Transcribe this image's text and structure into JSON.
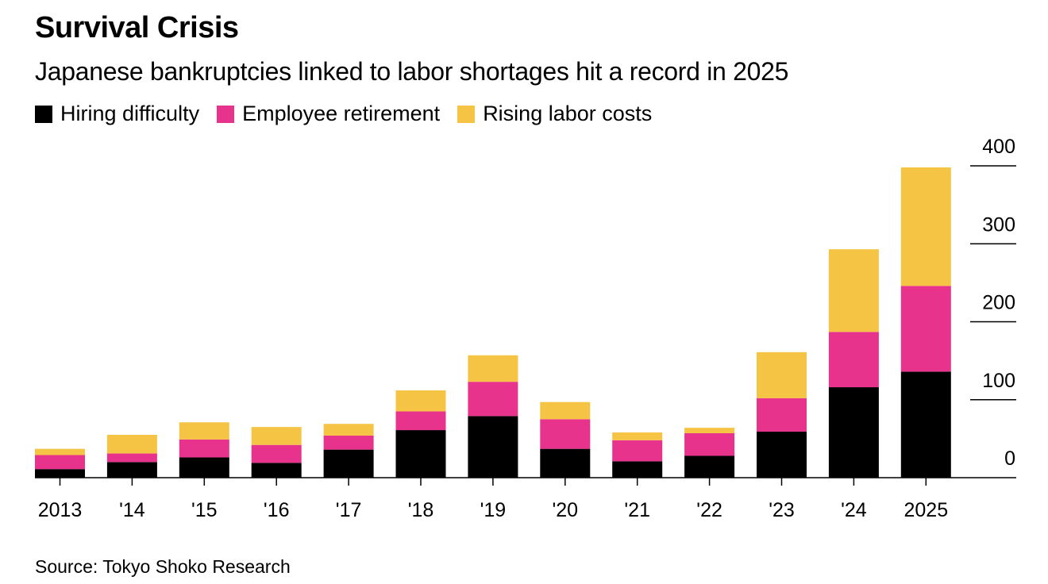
{
  "chart_data": {
    "type": "bar",
    "stacked": true,
    "title": "Survival Crisis",
    "subtitle": "Japanese bankruptcies linked to labor shortages hit a record in 2025",
    "categories": [
      "2013",
      "'14",
      "'15",
      "'16",
      "'17",
      "'18",
      "'19",
      "'20",
      "'21",
      "'22",
      "'23",
      "'24",
      "2025"
    ],
    "series": [
      {
        "name": "Hiring difficulty",
        "color": "#000000",
        "values": [
          11,
          20,
          26,
          19,
          36,
          61,
          79,
          37,
          21,
          28,
          59,
          116,
          136
        ]
      },
      {
        "name": "Employee retirement",
        "color": "#E8338D",
        "values": [
          18,
          11,
          23,
          23,
          18,
          24,
          44,
          38,
          27,
          29,
          43,
          71,
          110
        ]
      },
      {
        "name": "Rising labor costs",
        "color": "#F5C444",
        "values": [
          8,
          24,
          22,
          23,
          15,
          27,
          34,
          22,
          10,
          7,
          59,
          106,
          152
        ]
      }
    ],
    "y_ticks": [
      "0",
      "100",
      "200",
      "300",
      "400"
    ],
    "ylim": [
      0,
      400
    ],
    "legend_position": "top-left",
    "y_axis_position": "right"
  },
  "source": "Source: Tokyo Shoko Research"
}
